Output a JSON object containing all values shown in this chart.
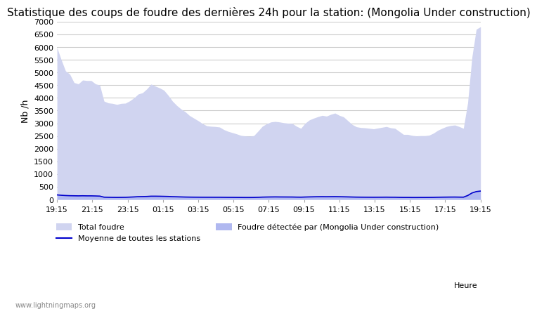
{
  "title": "Statistique des coups de foudre des dernières 24h pour la station: (Mongolia Under construction)",
  "ylabel": "Nb /h",
  "xlabel": "Heure",
  "watermark": "www.lightningmaps.org",
  "ylim": [
    0,
    7000
  ],
  "yticks": [
    0,
    500,
    1000,
    1500,
    2000,
    2500,
    3000,
    3500,
    4000,
    4500,
    5000,
    5500,
    6000,
    6500,
    7000
  ],
  "xtick_labels": [
    "19:15",
    "21:15",
    "23:15",
    "01:15",
    "03:15",
    "05:15",
    "07:15",
    "09:15",
    "11:15",
    "13:15",
    "15:15",
    "17:15",
    "19:15"
  ],
  "bg_color": "#ffffff",
  "fill_total_color": "#d0d4f0",
  "fill_detected_color": "#b0b8f0",
  "line_color": "#0000cc",
  "grid_color": "#cccccc",
  "title_fontsize": 11,
  "axis_fontsize": 9,
  "tick_fontsize": 8,
  "total_foudre": [
    5980,
    5500,
    5060,
    4930,
    4600,
    4550,
    4700,
    4680,
    4680,
    4550,
    4500,
    3870,
    3800,
    3780,
    3740,
    3780,
    3790,
    3880,
    4000,
    4150,
    4200,
    4350,
    4540,
    4460,
    4390,
    4300,
    4100,
    3870,
    3700,
    3560,
    3450,
    3300,
    3200,
    3100,
    2990,
    2900,
    2880,
    2870,
    2850,
    2750,
    2680,
    2630,
    2580,
    2520,
    2500,
    2490,
    2510,
    2690,
    2880,
    2980,
    3050,
    3070,
    3050,
    3020,
    3000,
    2990,
    2880,
    2800,
    3000,
    3130,
    3200,
    3260,
    3310,
    3280,
    3350,
    3400,
    3310,
    3250,
    3100,
    2950,
    2860,
    2830,
    2820,
    2800,
    2780,
    2810,
    2840,
    2870,
    2820,
    2800,
    2680,
    2560,
    2560,
    2520,
    2500,
    2510,
    2510,
    2530,
    2610,
    2720,
    2800,
    2870,
    2910,
    2930,
    2870,
    2800,
    3800,
    5600,
    6700,
    6800
  ],
  "detected_foudre": [
    200,
    180,
    170,
    165,
    160,
    155,
    160,
    155,
    155,
    150,
    145,
    100,
    95,
    90,
    88,
    90,
    92,
    100,
    110,
    120,
    125,
    130,
    140,
    140,
    138,
    135,
    130,
    120,
    115,
    110,
    105,
    100,
    98,
    97,
    96,
    95,
    95,
    94,
    94,
    92,
    90,
    90,
    88,
    87,
    85,
    85,
    86,
    92,
    100,
    105,
    108,
    110,
    108,
    107,
    106,
    105,
    100,
    98,
    105,
    110,
    115,
    118,
    120,
    118,
    120,
    122,
    118,
    115,
    110,
    105,
    100,
    98,
    97,
    96,
    95,
    96,
    97,
    98,
    96,
    95,
    90,
    88,
    88,
    86,
    85,
    86,
    86,
    87,
    90,
    95,
    98,
    100,
    102,
    103,
    100,
    98,
    170,
    280,
    340,
    360
  ],
  "mean_line": [
    180,
    165,
    155,
    148,
    145,
    142,
    145,
    142,
    142,
    138,
    132,
    90,
    85,
    82,
    80,
    82,
    84,
    92,
    100,
    110,
    114,
    118,
    128,
    128,
    126,
    122,
    118,
    110,
    105,
    100,
    95,
    92,
    90,
    89,
    88,
    87,
    87,
    86,
    86,
    84,
    82,
    82,
    80,
    79,
    78,
    78,
    79,
    84,
    92,
    96,
    99,
    101,
    99,
    98,
    97,
    96,
    92,
    90,
    96,
    101,
    105,
    108,
    110,
    108,
    110,
    112,
    108,
    105,
    101,
    96,
    92,
    90,
    89,
    88,
    87,
    88,
    89,
    90,
    88,
    87,
    82,
    80,
    80,
    78,
    78,
    79,
    79,
    80,
    82,
    87,
    90,
    92,
    94,
    95,
    92,
    90,
    155,
    255,
    310,
    330
  ]
}
